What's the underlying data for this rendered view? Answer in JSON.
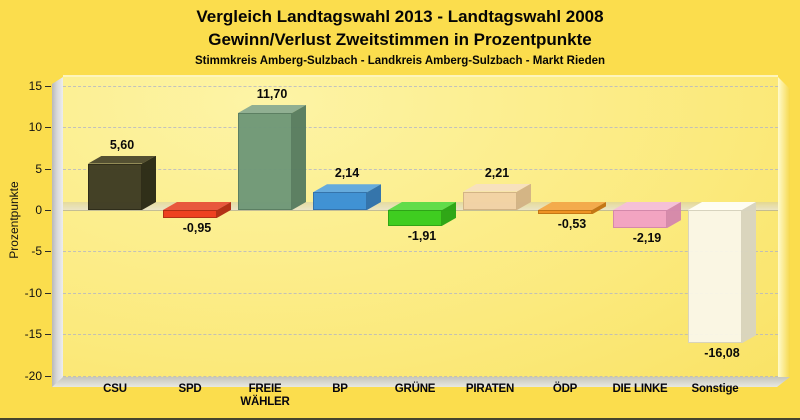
{
  "header": {
    "title": "Vergleich Landtagswahl 2013 - Landtagswahl 2008",
    "subtitle": "Gewinn/Verlust Zweitstimmen in Prozentpunkte",
    "region_line": "Stimmkreis Amberg-Sulzbach - Landkreis Amberg-Sulzbach - Markt Rieden"
  },
  "chart_data": {
    "type": "bar",
    "title": "Vergleich Landtagswahl 2013 - Landtagswahl 2008",
    "subtitle": "Gewinn/Verlust Zweitstimmen in Prozentpunkte",
    "annotation": "Stimmkreis Amberg-Sulzbach - Landkreis Amberg-Sulzbach - Markt Rieden",
    "categories": [
      "CSU",
      "SPD",
      "FREIE WÄHLER",
      "BP",
      "GRÜNE",
      "PIRATEN",
      "ÖDP",
      "DIE LINKE",
      "Sonstige"
    ],
    "category_display": [
      "CSU",
      "SPD",
      "FREIE\nWÄHLER",
      "BP",
      "GRÜNE",
      "PIRATEN",
      "ÖDP",
      "DIE LINKE",
      "Sonstige"
    ],
    "values": [
      5.6,
      -0.95,
      11.7,
      2.14,
      -1.91,
      2.21,
      -0.53,
      -2.19,
      -16.08
    ],
    "value_labels": [
      "5,60",
      "-0,95",
      "11,70",
      "2,14",
      "-1,91",
      "2,21",
      "-0,53",
      "-2,19",
      "-16,08"
    ],
    "xlabel": "",
    "ylabel": "Prozentpunkte",
    "ylim": [
      -20,
      15
    ],
    "yticks": [
      15,
      10,
      5,
      0,
      -5,
      -10,
      -15,
      -20
    ],
    "grid": true,
    "legend": false,
    "style": "3d-bars",
    "bar_face_colors": [
      {
        "front": "#3D3A22",
        "top": "#4D492E",
        "side": "#282614"
      },
      {
        "front": "#EE3A1C",
        "top": "#E85238",
        "side": "#B02A10"
      },
      {
        "front": "#6F9878",
        "top": "#8BAC91",
        "side": "#567B60"
      },
      {
        "front": "#3A8FD6",
        "top": "#5FA8E0",
        "side": "#2D6FAC"
      },
      {
        "front": "#38CC1C",
        "top": "#5CDC46",
        "side": "#28A312"
      },
      {
        "front": "#F2D2A6",
        "top": "#F7E0C0",
        "side": "#D2B285"
      },
      {
        "front": "#EE9020",
        "top": "#F4A948",
        "side": "#C27310"
      },
      {
        "front": "#F2A2C4",
        "top": "#F6BED8",
        "side": "#D486AC"
      },
      {
        "front": "#FAF7E8",
        "top": "#FFFEF6",
        "side": "#D8D4C0"
      }
    ],
    "colors": {
      "page_background": "#FBDD4D",
      "plot_background_light": "#FDF4A6",
      "plot_background_dark": "#F7DC52",
      "text": "#050505",
      "gridline": "#AFB2C8"
    }
  }
}
